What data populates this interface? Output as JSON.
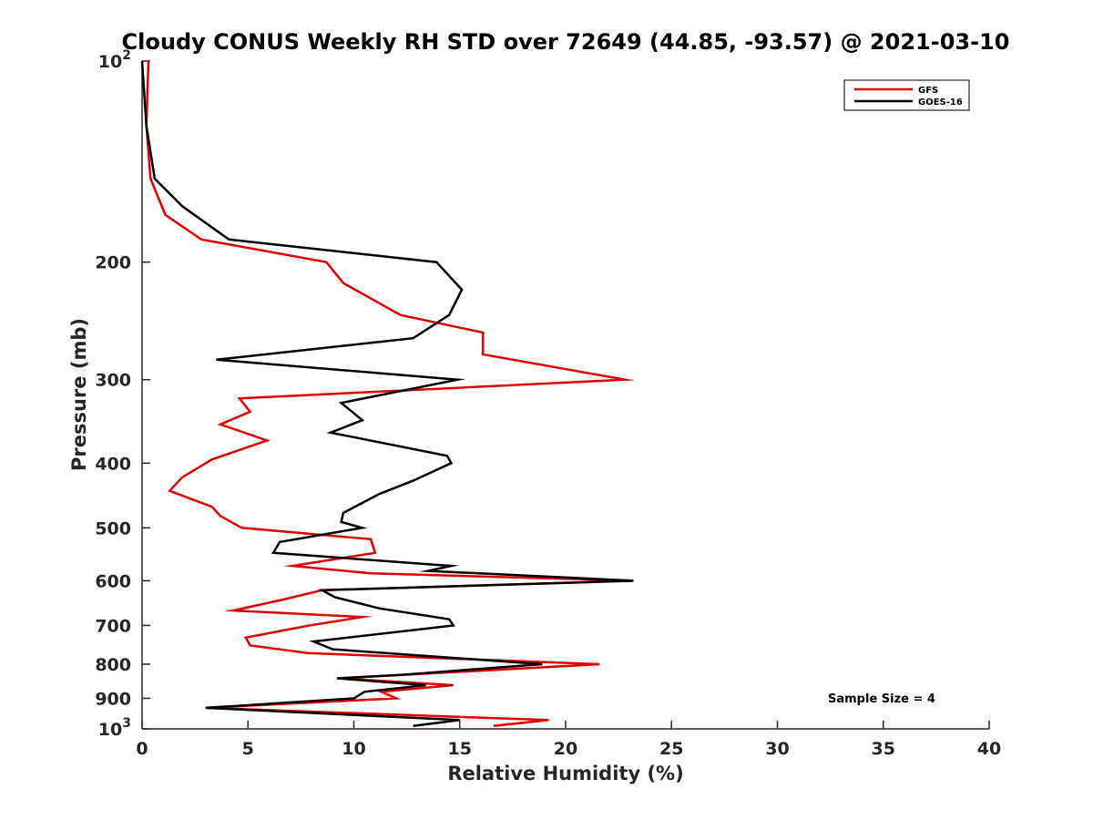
{
  "chart_data": {
    "type": "line",
    "title": "Cloudy CONUS Weekly RH STD over 72649 (44.85, -93.57) @ 2021-03-10",
    "xlabel": "Relative Humidity (%)",
    "ylabel": "Pressure (mb)",
    "xlim": [
      0,
      40
    ],
    "ylim": [
      1000,
      100
    ],
    "y_scale": "log",
    "y_reversed": true,
    "x_ticks": [
      "0",
      "5",
      "10",
      "15",
      "20",
      "25",
      "30",
      "35",
      "40"
    ],
    "y_ticks": [
      {
        "value": 100,
        "base": "10",
        "exp": "2"
      },
      {
        "value": 200,
        "label": "200"
      },
      {
        "value": 300,
        "label": "300"
      },
      {
        "value": 400,
        "label": "400"
      },
      {
        "value": 500,
        "label": "500"
      },
      {
        "value": 600,
        "label": "600"
      },
      {
        "value": 700,
        "label": "700"
      },
      {
        "value": 800,
        "label": "800"
      },
      {
        "value": 900,
        "label": "900"
      },
      {
        "value": 1000,
        "base": "10",
        "exp": "3"
      }
    ],
    "legend_position": "top-right",
    "grid": false,
    "annotation": "Sample Size = 4",
    "series": [
      {
        "name": "GFS",
        "color": "#e00000",
        "points": [
          [
            0.3,
            100
          ],
          [
            0.2,
            125
          ],
          [
            0.4,
            150
          ],
          [
            1.1,
            170
          ],
          [
            2.8,
            185
          ],
          [
            8.7,
            200
          ],
          [
            9.5,
            215
          ],
          [
            12.2,
            240
          ],
          [
            16.1,
            255
          ],
          [
            16.1,
            275
          ],
          [
            22.8,
            300
          ],
          [
            4.6,
            320
          ],
          [
            5.1,
            335
          ],
          [
            3.7,
            350
          ],
          [
            5.9,
            370
          ],
          [
            3.3,
            395
          ],
          [
            1.9,
            420
          ],
          [
            1.3,
            440
          ],
          [
            3.3,
            465
          ],
          [
            3.7,
            480
          ],
          [
            4.7,
            500
          ],
          [
            10.8,
            520
          ],
          [
            11.0,
            545
          ],
          [
            7.1,
            570
          ],
          [
            10.8,
            585
          ],
          [
            23.2,
            600
          ],
          [
            8.5,
            620
          ],
          [
            6.7,
            640
          ],
          [
            4.3,
            665
          ],
          [
            10.4,
            680
          ],
          [
            7.9,
            700
          ],
          [
            4.9,
            730
          ],
          [
            5.1,
            750
          ],
          [
            7.8,
            770
          ],
          [
            21.6,
            800
          ],
          [
            17.0,
            815
          ],
          [
            9.3,
            840
          ],
          [
            14.7,
            860
          ],
          [
            11.3,
            880
          ],
          [
            12.0,
            900
          ],
          [
            3.0,
            930
          ],
          [
            19.2,
            970
          ],
          [
            16.6,
            990
          ]
        ]
      },
      {
        "name": "GOES-16",
        "color": "#000000",
        "points": [
          [
            0.0,
            100
          ],
          [
            0.2,
            125
          ],
          [
            0.6,
            150
          ],
          [
            1.9,
            165
          ],
          [
            4.1,
            185
          ],
          [
            13.9,
            200
          ],
          [
            15.1,
            220
          ],
          [
            14.5,
            240
          ],
          [
            12.8,
            260
          ],
          [
            3.5,
            280
          ],
          [
            14.9,
            300
          ],
          [
            9.4,
            325
          ],
          [
            10.4,
            345
          ],
          [
            8.9,
            360
          ],
          [
            14.4,
            390
          ],
          [
            14.6,
            400
          ],
          [
            12.8,
            425
          ],
          [
            11.2,
            445
          ],
          [
            9.5,
            475
          ],
          [
            9.4,
            490
          ],
          [
            10.4,
            500
          ],
          [
            6.5,
            525
          ],
          [
            6.2,
            545
          ],
          [
            14.6,
            570
          ],
          [
            13.5,
            580
          ],
          [
            23.2,
            600
          ],
          [
            8.5,
            620
          ],
          [
            9.1,
            635
          ],
          [
            11.2,
            660
          ],
          [
            14.5,
            685
          ],
          [
            14.7,
            700
          ],
          [
            8.1,
            740
          ],
          [
            9.0,
            760
          ],
          [
            18.9,
            800
          ],
          [
            12.2,
            830
          ],
          [
            9.2,
            840
          ],
          [
            13.4,
            860
          ],
          [
            10.5,
            880
          ],
          [
            10.0,
            900
          ],
          [
            3.0,
            930
          ],
          [
            15.0,
            970
          ],
          [
            12.8,
            990
          ]
        ]
      }
    ]
  }
}
